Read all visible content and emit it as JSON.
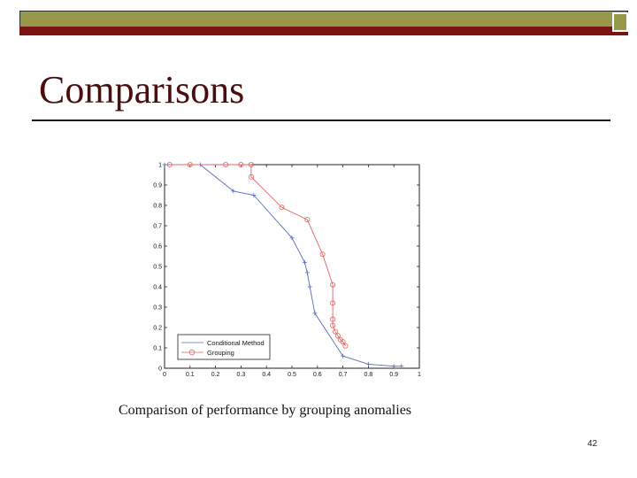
{
  "slide": {
    "title": "Comparisons",
    "caption": "Comparison of performance by grouping anomalies",
    "page_number": "42"
  },
  "colors": {
    "olive_bar": "#98984a",
    "maroon_bar": "#7a1414",
    "title_text": "#4a0e0e",
    "conditional_series": "#5a6bbf",
    "grouping_series": "#e06464"
  },
  "chart_data": {
    "type": "line",
    "title": "",
    "xlabel": "",
    "ylabel": "",
    "xlim": [
      0,
      1
    ],
    "ylim": [
      0,
      1
    ],
    "x_ticks": [
      "0",
      "0.1",
      "0.2",
      "0.3",
      "0.4",
      "0.5",
      "0.6",
      "0.7",
      "0.8",
      "0.9",
      "1"
    ],
    "y_ticks": [
      "0",
      "0.1",
      "0.2",
      "0.3",
      "0.4",
      "0.5",
      "0.6",
      "0.7",
      "0.8",
      "0.9",
      "1"
    ],
    "grid": false,
    "legend": "bottom-left",
    "series": [
      {
        "name": "Conditional Method",
        "marker": "+",
        "color": "#5a6bbf",
        "x": [
          0.0,
          0.14,
          0.27,
          0.35,
          0.5,
          0.55,
          0.56,
          0.57,
          0.59,
          0.7,
          0.8,
          0.9,
          0.93
        ],
        "y": [
          1.0,
          1.0,
          0.87,
          0.85,
          0.64,
          0.52,
          0.47,
          0.4,
          0.27,
          0.06,
          0.02,
          0.01,
          0.01
        ]
      },
      {
        "name": "Grouping",
        "marker": "o",
        "color": "#e06464",
        "x": [
          0.02,
          0.1,
          0.24,
          0.3,
          0.34,
          0.34,
          0.46,
          0.56,
          0.62,
          0.66,
          0.66,
          0.66,
          0.66,
          0.67,
          0.68,
          0.69,
          0.7,
          0.71
        ],
        "y": [
          1.0,
          1.0,
          1.0,
          1.0,
          1.0,
          0.94,
          0.79,
          0.73,
          0.56,
          0.41,
          0.32,
          0.24,
          0.21,
          0.18,
          0.16,
          0.14,
          0.13,
          0.11
        ]
      }
    ]
  }
}
